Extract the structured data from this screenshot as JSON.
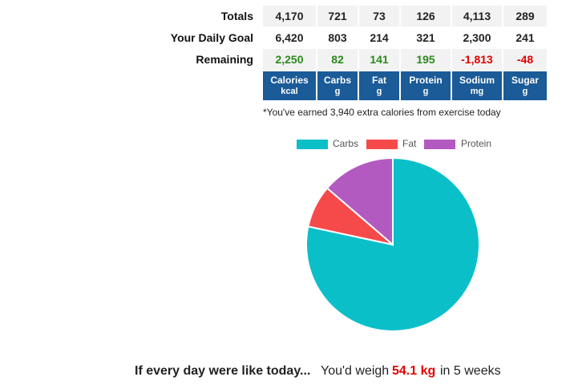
{
  "table": {
    "rows": [
      {
        "label": "Totals",
        "values": [
          "4,170",
          "721",
          "73",
          "126",
          "4,113",
          "289"
        ]
      },
      {
        "label": "Your Daily Goal",
        "values": [
          "6,420",
          "803",
          "214",
          "321",
          "2,300",
          "241"
        ]
      },
      {
        "label": "Remaining",
        "values": [
          "2,250",
          "82",
          "141",
          "195",
          "-1,813",
          "-48"
        ]
      }
    ],
    "remaining_status": [
      "positive",
      "positive",
      "positive",
      "positive",
      "negative",
      "negative"
    ],
    "headers": [
      {
        "name": "Calories",
        "unit": "kcal"
      },
      {
        "name": "Carbs",
        "unit": "g"
      },
      {
        "name": "Fat",
        "unit": "g"
      },
      {
        "name": "Protein",
        "unit": "g"
      },
      {
        "name": "Sodium",
        "unit": "mg"
      },
      {
        "name": "Sugar",
        "unit": "g"
      }
    ],
    "colors": {
      "header_bg": "#1b5b98",
      "positive": "#2a8a1a",
      "negative": "#e00000"
    }
  },
  "exercise_note": "*You've earned 3,940 extra calories from exercise today",
  "chart_data": {
    "type": "pie",
    "legend_position": "top",
    "categories": [
      "Carbs",
      "Fat",
      "Protein"
    ],
    "values": [
      721,
      73,
      126
    ],
    "colors": [
      "#0bbfc9",
      "#f64a4a",
      "#b35ac1"
    ]
  },
  "footer": {
    "lead": "If every day were like today...",
    "text_before": "You'd weigh",
    "weight": "54.1 kg",
    "text_after": "in 5 weeks"
  }
}
